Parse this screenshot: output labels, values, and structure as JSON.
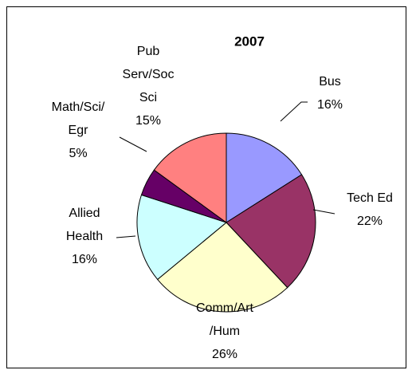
{
  "chart_data": {
    "type": "pie",
    "title": "2007",
    "categories": [
      "Bus",
      "Tech Ed",
      "Comm/Art\n/Hum",
      "Allied\nHealth",
      "Math/Sci/\nEgr",
      "Pub\nServ/Soc\nSci"
    ],
    "values": [
      16,
      22,
      26,
      16,
      5,
      15
    ],
    "value_labels": [
      "16%",
      "22%",
      "26%",
      "16%",
      "5%",
      "15%"
    ],
    "colors": [
      "#9999ff",
      "#993366",
      "#ffffcc",
      "#ccffff",
      "#660066",
      "#ff8080"
    ]
  }
}
